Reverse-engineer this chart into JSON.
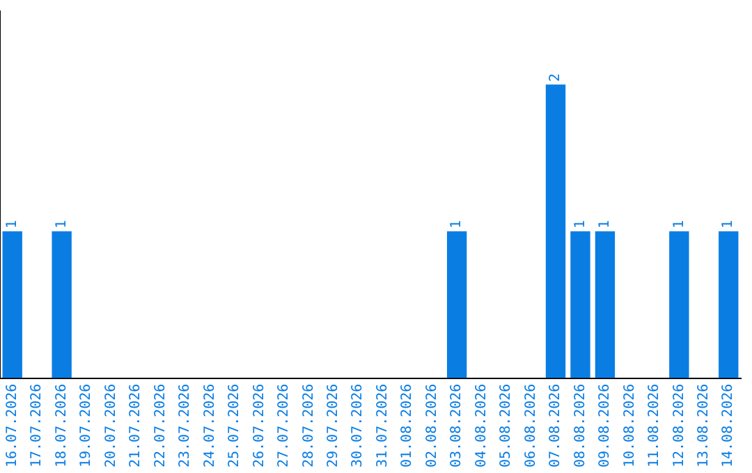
{
  "chart_data": {
    "type": "bar",
    "categories": [
      "16.07.2026",
      "17.07.2026",
      "18.07.2026",
      "19.07.2026",
      "20.07.2026",
      "21.07.2026",
      "22.07.2026",
      "23.07.2026",
      "24.07.2026",
      "25.07.2026",
      "26.07.2026",
      "27.07.2026",
      "28.07.2026",
      "29.07.2026",
      "30.07.2026",
      "31.07.2026",
      "01.08.2026",
      "02.08.2026",
      "03.08.2026",
      "04.08.2026",
      "05.08.2026",
      "06.08.2026",
      "07.08.2026",
      "08.08.2026",
      "09.08.2026",
      "10.08.2026",
      "11.08.2026",
      "12.08.2026",
      "13.08.2026",
      "14.08.2026"
    ],
    "values": [
      1,
      0,
      1,
      0,
      0,
      0,
      0,
      0,
      0,
      0,
      0,
      0,
      0,
      0,
      0,
      0,
      0,
      0,
      1,
      0,
      0,
      0,
      2,
      1,
      1,
      0,
      0,
      1,
      0,
      1
    ],
    "value_labels": [
      "1",
      null,
      "1",
      null,
      null,
      null,
      null,
      null,
      null,
      null,
      null,
      null,
      null,
      null,
      null,
      null,
      null,
      null,
      "1",
      null,
      null,
      null,
      "2",
      "1",
      "1",
      null,
      null,
      "1",
      null,
      "1"
    ],
    "color": "#0a7de3",
    "grid": false,
    "legend": false,
    "tick_labels": "x"
  }
}
